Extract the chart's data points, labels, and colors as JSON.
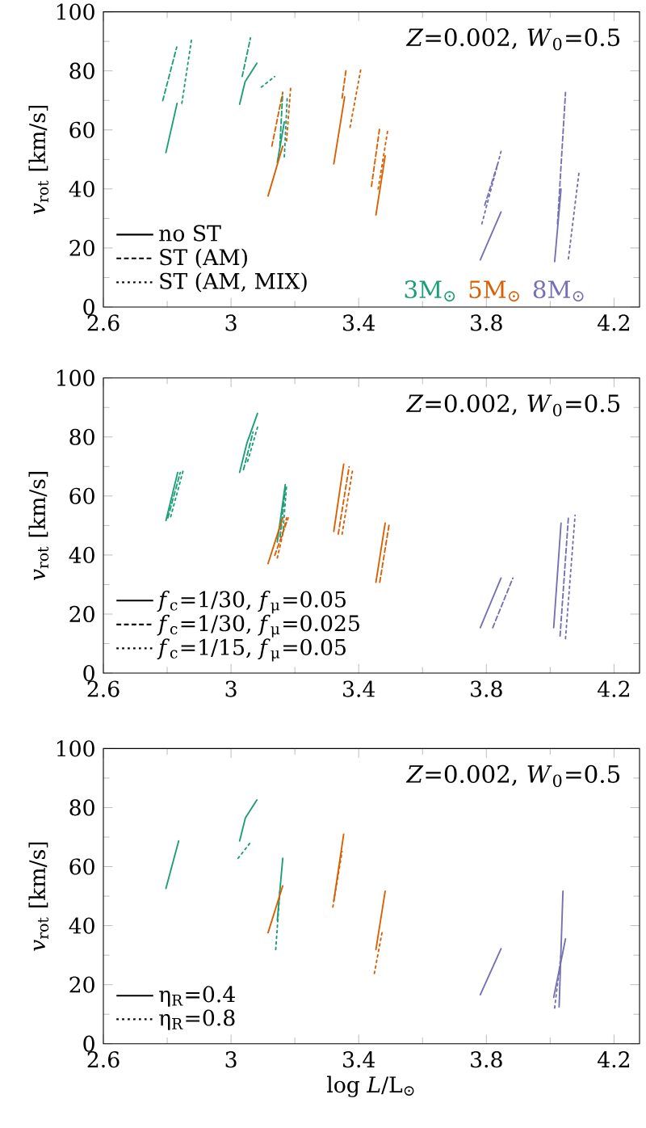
{
  "chart_data": [
    {
      "type": "line",
      "ylabel": "*v*$_{rot}$ [km/s]",
      "xlim": [
        2.6,
        4.28
      ],
      "ylim": [
        0,
        100
      ],
      "xticks": [
        2.6,
        3,
        3.4,
        3.8,
        4.2
      ],
      "yticks": [
        0,
        20,
        40,
        60,
        80,
        100
      ],
      "legend": "bottom left",
      "annotations": [
        "*Z*=0.002, *W*$_{0}$=0.5"
      ],
      "series": [
        {
          "name": "no ST",
          "color": "#000000",
          "line_style": "solid"
        },
        {
          "name": "ST (AM)",
          "color": "#000000",
          "line_style": "dashed"
        },
        {
          "name": "ST (AM, MIX)",
          "color": "#000000",
          "line_style": "dotted"
        },
        {
          "name": "3M$_{⊙}$",
          "color": "#1b9e77",
          "line_style": "solid",
          "x": [
            2.796,
            2.831
          ],
          "values": [
            52.3,
            69.0
          ]
        },
        {
          "color": "#1b9e77",
          "line_style": "dashed",
          "x": [
            2.786,
            2.83
          ],
          "values": [
            69.9,
            88.1
          ]
        },
        {
          "color": "#1b9e77",
          "line_style": "dotted",
          "x": [
            2.846,
            2.877
          ],
          "values": [
            69.0,
            91.2
          ]
        },
        {
          "color": "#1b9e77",
          "line_style": "solid",
          "x": [
            3.027,
            3.044,
            3.081
          ],
          "values": [
            68.7,
            76.3,
            82.6
          ]
        },
        {
          "color": "#1b9e77",
          "line_style": "dashed",
          "x": [
            3.035,
            3.061
          ],
          "values": [
            78.1,
            91.2
          ]
        },
        {
          "color": "#1b9e77",
          "line_style": "dotted",
          "x": [
            3.095,
            3.137
          ],
          "values": [
            74.5,
            78.1
          ]
        },
        {
          "color": "#1b9e77",
          "line_style": "solid",
          "x": [
            3.145,
            3.167
          ],
          "values": [
            49.0,
            62.7
          ]
        },
        {
          "color": "#1b9e77",
          "line_style": "dashed",
          "x": [
            3.153,
            3.162
          ],
          "values": [
            54.5,
            72.7
          ]
        },
        {
          "color": "#1b9e77",
          "line_style": "dotted",
          "x": [
            3.167,
            3.176
          ],
          "values": [
            50.9,
            70.8
          ]
        },
        {
          "name": "5M$_{⊙}$",
          "color": "#d95f02",
          "line_style": "solid",
          "x": [
            3.116,
            3.162
          ],
          "values": [
            37.6,
            54.5
          ]
        },
        {
          "color": "#d95f02",
          "line_style": "dashed",
          "x": [
            3.128,
            3.162
          ],
          "values": [
            54.5,
            72.7
          ]
        },
        {
          "color": "#d95f02",
          "line_style": "dotted",
          "x": [
            3.174,
            3.187
          ],
          "values": [
            56.3,
            74.5
          ]
        },
        {
          "color": "#d95f02",
          "line_style": "solid",
          "x": [
            3.322,
            3.356
          ],
          "values": [
            48.5,
            71.2
          ]
        },
        {
          "color": "#d95f02",
          "line_style": "dashed",
          "x": [
            3.348,
            3.361
          ],
          "values": [
            70.8,
            80.8
          ]
        },
        {
          "color": "#d95f02",
          "line_style": "dotted",
          "x": [
            3.373,
            3.407
          ],
          "values": [
            60.9,
            80.8
          ]
        },
        {
          "color": "#d95f02",
          "line_style": "solid",
          "x": [
            3.454,
            3.483
          ],
          "values": [
            31.2,
            51.2
          ]
        },
        {
          "color": "#d95f02",
          "line_style": "dashed",
          "x": [
            3.44,
            3.466
          ],
          "values": [
            40.9,
            60.9
          ]
        },
        {
          "color": "#d95f02",
          "line_style": "dotted",
          "x": [
            3.461,
            3.491
          ],
          "values": [
            40.0,
            59.9
          ]
        },
        {
          "name": "8M$_{⊙}$",
          "color": "#7570b3",
          "line_style": "solid",
          "x": [
            3.781,
            3.846
          ],
          "values": [
            16.0,
            32.2
          ]
        },
        {
          "color": "#7570b3",
          "line_style": "dashed",
          "x": [
            3.795,
            3.837
          ],
          "values": [
            34.5,
            49.0
          ]
        },
        {
          "color": "#7570b3",
          "line_style": "dotted",
          "x": [
            3.786,
            3.846
          ],
          "values": [
            28.2,
            52.7
          ]
        },
        {
          "color": "#7570b3",
          "line_style": "solid",
          "x": [
            4.014,
            4.034
          ],
          "values": [
            15.4,
            40.0
          ]
        },
        {
          "color": "#7570b3",
          "line_style": "dashed",
          "x": [
            4.023,
            4.048
          ],
          "values": [
            28.2,
            72.7
          ]
        },
        {
          "color": "#7570b3",
          "line_style": "dotted",
          "x": [
            4.057,
            4.09
          ],
          "values": [
            16.3,
            45.4
          ]
        }
      ]
    },
    {
      "type": "line",
      "ylabel": "*v*$_{rot}$ [km/s]",
      "xlim": [
        2.6,
        4.28
      ],
      "ylim": [
        0,
        100
      ],
      "xticks": [
        2.6,
        3,
        3.4,
        3.8,
        4.2
      ],
      "yticks": [
        0,
        20,
        40,
        60,
        80,
        100
      ],
      "legend": "bottom left",
      "annotations": [
        "*Z*=0.002, *W*$_{0}$=0.5"
      ],
      "series": [
        {
          "name": "*f*$_{c}$=1/30, *f*$_{μ}$=0.05",
          "color": "#000000",
          "line_style": "solid"
        },
        {
          "name": "*f*$_{c}$=1/30, *f*$_{μ}$=0.025",
          "color": "#000000",
          "line_style": "dashed"
        },
        {
          "name": "*f*$_{c}$=1/15, *f*$_{μ}$=0.05",
          "color": "#000000",
          "line_style": "dotted"
        },
        {
          "color": "#1b9e77",
          "line_style": "solid",
          "x": [
            2.796,
            2.833
          ],
          "values": [
            51.7,
            68.0
          ]
        },
        {
          "color": "#1b9e77",
          "line_style": "dashed",
          "x": [
            2.802,
            2.841
          ],
          "values": [
            52.6,
            68.0
          ]
        },
        {
          "color": "#1b9e77",
          "line_style": "dotted",
          "x": [
            2.811,
            2.85
          ],
          "values": [
            53.0,
            68.6
          ]
        },
        {
          "color": "#1b9e77",
          "line_style": "solid",
          "x": [
            3.027,
            3.05,
            3.083
          ],
          "values": [
            68.0,
            78.0,
            88.0
          ]
        },
        {
          "color": "#1b9e77",
          "line_style": "dashed",
          "x": [
            3.039,
            3.069
          ],
          "values": [
            68.9,
            81.7
          ]
        },
        {
          "color": "#1b9e77",
          "line_style": "dotted",
          "x": [
            3.052,
            3.086
          ],
          "values": [
            71.7,
            84.4
          ]
        },
        {
          "color": "#1b9e77",
          "line_style": "solid",
          "x": [
            3.145,
            3.17
          ],
          "values": [
            44.4,
            63.9
          ]
        },
        {
          "color": "#1b9e77",
          "line_style": "dashed",
          "x": [
            3.154,
            3.17
          ],
          "values": [
            46.2,
            62.6
          ]
        },
        {
          "color": "#1b9e77",
          "line_style": "dotted",
          "x": [
            3.162,
            3.174
          ],
          "values": [
            47.1,
            63.5
          ]
        },
        {
          "color": "#d95f02",
          "line_style": "solid",
          "x": [
            3.116,
            3.162
          ],
          "values": [
            37.1,
            52.6
          ]
        },
        {
          "color": "#d95f02",
          "line_style": "dashed",
          "x": [
            3.137,
            3.179
          ],
          "values": [
            39.9,
            52.6
          ]
        },
        {
          "color": "#d95f02",
          "line_style": "dotted",
          "x": [
            3.145,
            3.174
          ],
          "values": [
            39.0,
            52.6
          ]
        },
        {
          "color": "#d95f02",
          "line_style": "solid",
          "x": [
            3.322,
            3.353
          ],
          "values": [
            48.0,
            70.8
          ]
        },
        {
          "color": "#d95f02",
          "line_style": "dashed",
          "x": [
            3.336,
            3.37
          ],
          "values": [
            47.1,
            69.9
          ]
        },
        {
          "color": "#d95f02",
          "line_style": "dotted",
          "x": [
            3.348,
            3.381
          ],
          "values": [
            47.1,
            68.9
          ]
        },
        {
          "color": "#d95f02",
          "line_style": "solid",
          "x": [
            3.454,
            3.483
          ],
          "values": [
            30.8,
            50.8
          ]
        },
        {
          "color": "#d95f02",
          "line_style": "dashed",
          "x": [
            3.466,
            3.496
          ],
          "values": [
            30.8,
            50.8
          ]
        },
        {
          "color": "#7570b3",
          "line_style": "solid",
          "x": [
            3.781,
            3.846
          ],
          "values": [
            15.4,
            32.2
          ]
        },
        {
          "color": "#7570b3",
          "line_style": "dashed",
          "x": [
            3.82,
            3.883
          ],
          "values": [
            15.4,
            32.2
          ]
        },
        {
          "color": "#7570b3",
          "line_style": "solid",
          "x": [
            4.011,
            4.034
          ],
          "values": [
            15.4,
            50.8
          ]
        },
        {
          "color": "#7570b3",
          "line_style": "dashed",
          "x": [
            4.031,
            4.057
          ],
          "values": [
            12.6,
            52.6
          ]
        },
        {
          "color": "#7570b3",
          "line_style": "dotted",
          "x": [
            4.048,
            4.078
          ],
          "values": [
            11.7,
            53.5
          ]
        }
      ]
    },
    {
      "type": "line",
      "ylabel": "*v*$_{rot}$ [km/s]",
      "xlabel": "log *L*/L$_{⊙}$",
      "xlim": [
        2.6,
        4.28
      ],
      "ylim": [
        0,
        100
      ],
      "xticks": [
        2.6,
        3,
        3.4,
        3.8,
        4.2
      ],
      "yticks": [
        0,
        20,
        40,
        60,
        80,
        100
      ],
      "legend": "bottom left",
      "annotations": [
        "*Z*=0.002, *W*$_{0}$=0.5"
      ],
      "series": [
        {
          "name": "η$_{R}$=0.4",
          "color": "#000000",
          "line_style": "solid"
        },
        {
          "name": "η$_{R}$=0.8",
          "color": "#000000",
          "line_style": "dotted"
        },
        {
          "color": "#1b9e77",
          "line_style": "solid",
          "x": [
            2.796,
            2.836
          ],
          "values": [
            52.6,
            68.7
          ]
        },
        {
          "color": "#1b9e77",
          "line_style": "solid",
          "x": [
            3.027,
            3.045,
            3.081
          ],
          "values": [
            68.7,
            76.5,
            82.6
          ]
        },
        {
          "color": "#1b9e77",
          "line_style": "dotted",
          "x": [
            3.022,
            3.061
          ],
          "values": [
            62.8,
            68.2
          ]
        },
        {
          "color": "#1b9e77",
          "line_style": "solid",
          "x": [
            3.145,
            3.162
          ],
          "values": [
            41.8,
            62.8
          ]
        },
        {
          "color": "#1b9e77",
          "line_style": "dotted",
          "x": [
            3.14,
            3.153
          ],
          "values": [
            31.9,
            51.7
          ]
        },
        {
          "color": "#d95f02",
          "line_style": "solid",
          "x": [
            3.116,
            3.162
          ],
          "values": [
            37.6,
            53.5
          ]
        },
        {
          "color": "#d95f02",
          "line_style": "solid",
          "x": [
            3.322,
            3.353
          ],
          "values": [
            48.4,
            71.0
          ]
        },
        {
          "color": "#d95f02",
          "line_style": "dotted",
          "x": [
            3.319,
            3.348
          ],
          "values": [
            46.3,
            65.1
          ]
        },
        {
          "color": "#d95f02",
          "line_style": "solid",
          "x": [
            3.454,
            3.483
          ],
          "values": [
            31.9,
            51.7
          ]
        },
        {
          "color": "#d95f02",
          "line_style": "dotted",
          "x": [
            3.449,
            3.474
          ],
          "values": [
            23.8,
            38.2
          ]
        },
        {
          "color": "#7570b3",
          "line_style": "solid",
          "x": [
            3.781,
            3.846
          ],
          "values": [
            16.6,
            32.2
          ]
        },
        {
          "color": "#7570b3",
          "line_style": "solid",
          "x": [
            4.028,
            4.04
          ],
          "values": [
            12.5,
            51.7
          ]
        },
        {
          "color": "#7570b3",
          "line_style": "solid",
          "x": [
            4.011,
            4.048
          ],
          "values": [
            15.7,
            35.5
          ]
        },
        {
          "color": "#7570b3",
          "line_style": "dotted",
          "x": [
            4.014,
            4.034
          ],
          "values": [
            12.1,
            30.1
          ]
        }
      ]
    }
  ]
}
